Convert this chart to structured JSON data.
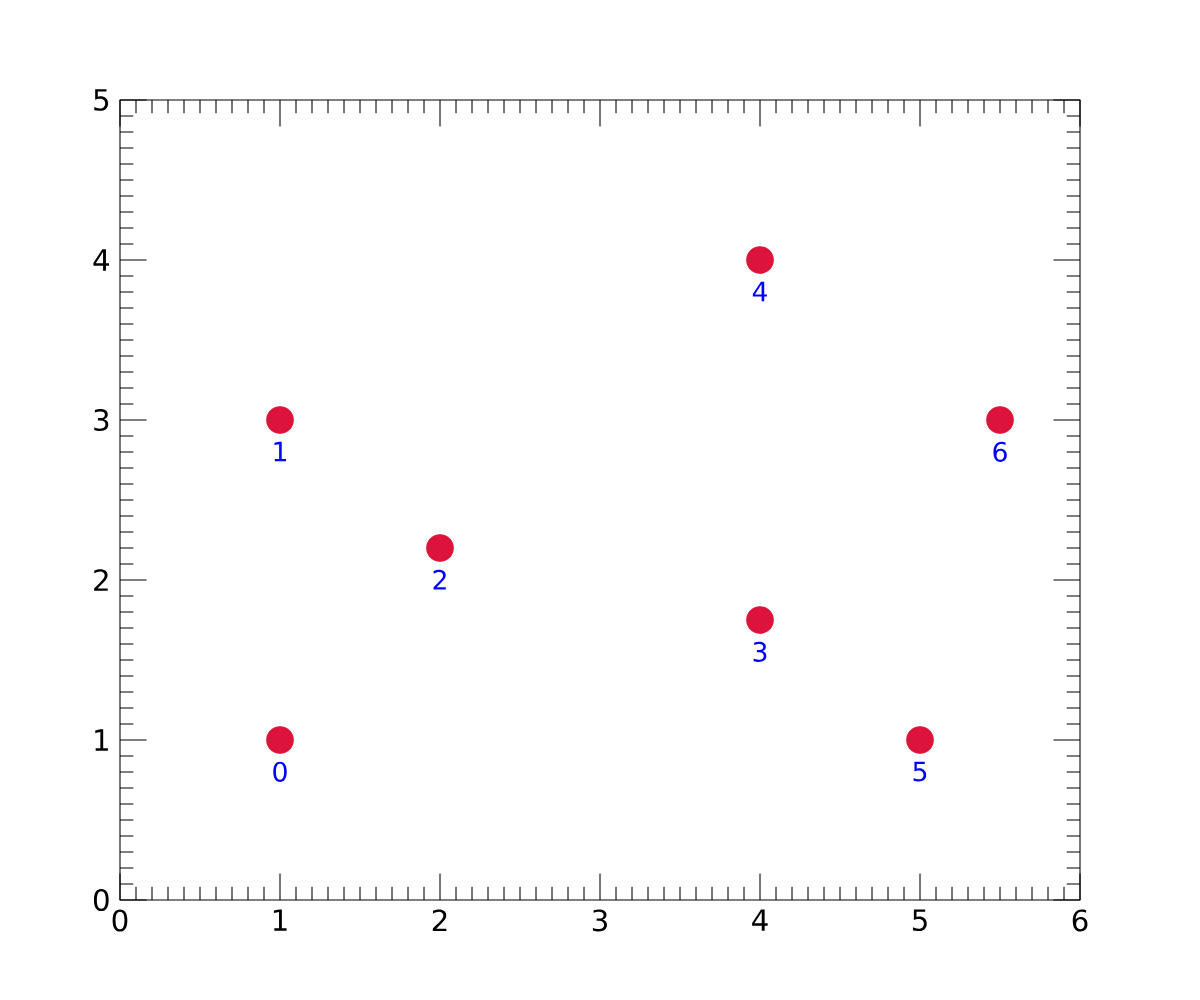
{
  "chart_data": {
    "type": "scatter",
    "x": [
      1,
      1,
      2,
      4,
      4,
      5,
      5.5
    ],
    "values": [
      1,
      3,
      2.2,
      1.75,
      4,
      1,
      3
    ],
    "color": "#dc143c",
    "marker": "circle",
    "xlim": [
      0,
      6
    ],
    "ylim": [
      0,
      5
    ],
    "xticks": [
      0,
      1,
      2,
      3,
      4,
      5,
      6
    ],
    "yticks": [
      0,
      1,
      2,
      3,
      4,
      5
    ],
    "annotations": [
      {
        "text": "0",
        "x": 1,
        "y": 1
      },
      {
        "text": "1",
        "x": 1,
        "y": 3
      },
      {
        "text": "2",
        "x": 2,
        "y": 2.2
      },
      {
        "text": "3",
        "x": 4,
        "y": 1.75
      },
      {
        "text": "4",
        "x": 4,
        "y": 4
      },
      {
        "text": "5",
        "x": 5,
        "y": 1
      },
      {
        "text": "6",
        "x": 5.5,
        "y": 3
      }
    ]
  }
}
